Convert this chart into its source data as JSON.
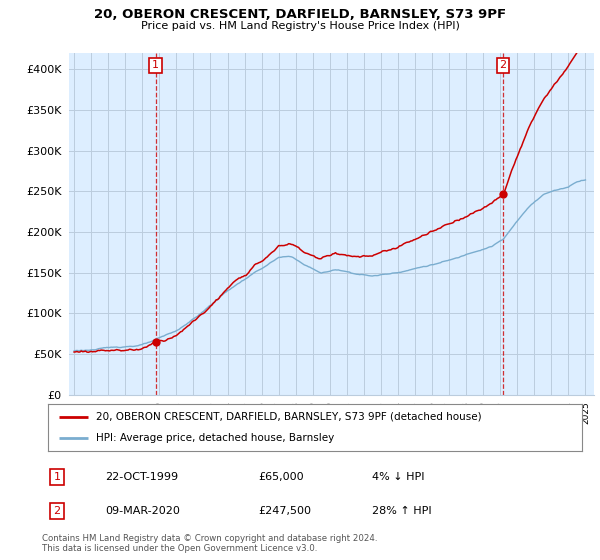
{
  "title_line1": "20, OBERON CRESCENT, DARFIELD, BARNSLEY, S73 9PF",
  "title_line2": "Price paid vs. HM Land Registry's House Price Index (HPI)",
  "legend_line1": "20, OBERON CRESCENT, DARFIELD, BARNSLEY, S73 9PF (detached house)",
  "legend_line2": "HPI: Average price, detached house, Barnsley",
  "footnote": "Contains HM Land Registry data © Crown copyright and database right 2024.\nThis data is licensed under the Open Government Licence v3.0.",
  "sale1_date": "22-OCT-1999",
  "sale1_price": 65000,
  "sale1_hpi": "4% ↓ HPI",
  "sale2_date": "09-MAR-2020",
  "sale2_price": 247500,
  "sale2_hpi": "28% ↑ HPI",
  "red_color": "#cc0000",
  "blue_color": "#7aadcf",
  "background_color": "#ffffff",
  "chart_bg": "#ddeeff",
  "grid_color": "#bbccdd",
  "ylim": [
    0,
    420000
  ],
  "yticks": [
    0,
    50000,
    100000,
    150000,
    200000,
    250000,
    300000,
    350000,
    400000
  ],
  "ytick_labels": [
    "£0",
    "£50K",
    "£100K",
    "£150K",
    "£200K",
    "£250K",
    "£300K",
    "£350K",
    "£400K"
  ],
  "sale1_t": 1999.79,
  "sale2_t": 2020.17
}
